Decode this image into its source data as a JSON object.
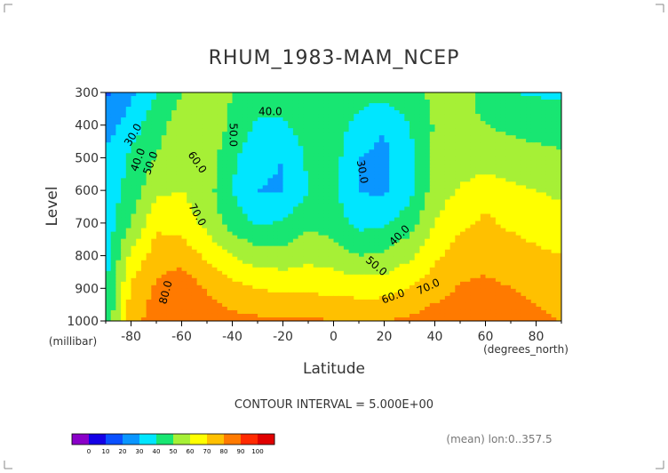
{
  "chart_data": {
    "type": "heatmap",
    "title": "RHUM_1983-MAM_NCEP",
    "xlabel": "Latitude",
    "ylabel": "Level",
    "x_unit": "(degrees_north)",
    "y_unit": "(millibar)",
    "xlim": [
      -90,
      90
    ],
    "ylim": [
      1000,
      300
    ],
    "x_ticks": [
      -80,
      -60,
      -40,
      -20,
      0,
      20,
      40,
      60,
      80
    ],
    "x_tick_labels": [
      "-80",
      "-60",
      "-40",
      "-20",
      "0",
      "20",
      "40",
      "60",
      "80"
    ],
    "y_ticks": [
      300,
      400,
      500,
      600,
      700,
      800,
      900,
      1000
    ],
    "y_tick_labels": [
      "300",
      "400",
      "500",
      "600",
      "700",
      "800",
      "900",
      "1000"
    ],
    "contour_interval_text": "CONTOUR INTERVAL = 5.000E+00",
    "footnote": "(mean) lon:0..357.5",
    "colorbar": {
      "ticks": [
        "0",
        "10",
        "20",
        "30",
        "40",
        "50",
        "60",
        "70",
        "80",
        "90",
        "100"
      ],
      "colors": [
        "#8a00c8",
        "#1400e6",
        "#0a50ff",
        "#0a96ff",
        "#00e6ff",
        "#18e672",
        "#a6f036",
        "#ffff00",
        "#ffc000",
        "#ff7a00",
        "#ff2a00",
        "#e00000"
      ]
    },
    "contour_labels": [
      {
        "text": "30.0",
        "lat": -78,
        "lev": 435,
        "rot": -60
      },
      {
        "text": "40.0",
        "lat": -76,
        "lev": 510,
        "rot": -70
      },
      {
        "text": "50.0",
        "lat": -71,
        "lev": 520,
        "rot": -70
      },
      {
        "text": "60.0",
        "lat": -55,
        "lev": 520,
        "rot": 55
      },
      {
        "text": "70.0",
        "lat": -55,
        "lev": 680,
        "rot": 60
      },
      {
        "text": "80.0",
        "lat": -65,
        "lev": 915,
        "rot": -75
      },
      {
        "text": "40.0",
        "lat": -25,
        "lev": 370,
        "rot": 0
      },
      {
        "text": "50.0",
        "lat": -41,
        "lev": 430,
        "rot": 90
      },
      {
        "text": "30.0",
        "lat": 10,
        "lev": 545,
        "rot": 80
      },
      {
        "text": "40.0",
        "lat": 27,
        "lev": 745,
        "rot": -45
      },
      {
        "text": "50.0",
        "lat": 16,
        "lev": 840,
        "rot": 40
      },
      {
        "text": "60.0",
        "lat": 24,
        "lev": 935,
        "rot": -20
      },
      {
        "text": "70.0",
        "lat": 38,
        "lev": 905,
        "rot": -25
      }
    ],
    "field": {
      "latitudes": [
        -90,
        -80,
        -70,
        -60,
        -50,
        -40,
        -30,
        -20,
        -10,
        0,
        10,
        20,
        30,
        40,
        50,
        60,
        70,
        80,
        90
      ],
      "levels": [
        300,
        400,
        500,
        600,
        700,
        800,
        900,
        1000
      ],
      "values": [
        [
          18,
          28,
          40,
          50,
          55,
          50,
          45,
          47,
          49,
          47,
          45,
          43,
          47,
          52,
          54,
          46,
          40,
          39,
          38
        ],
        [
          25,
          35,
          46,
          56,
          58,
          48,
          38,
          38,
          46,
          46,
          36,
          31,
          40,
          51,
          53,
          50,
          48,
          46,
          45
        ],
        [
          32,
          42,
          50,
          58,
          56,
          42,
          32,
          30,
          42,
          44,
          30,
          27,
          37,
          52,
          55,
          56,
          54,
          53,
          52
        ],
        [
          33,
          44,
          58,
          60,
          54,
          40,
          30,
          29,
          40,
          42,
          30,
          28,
          37,
          55,
          61,
          65,
          62,
          60,
          58
        ],
        [
          34,
          50,
          68,
          66,
          57,
          45,
          39,
          41,
          48,
          45,
          37,
          38,
          45,
          60,
          68,
          72,
          68,
          66,
          64
        ],
        [
          36,
          62,
          75,
          76,
          68,
          60,
          54,
          54,
          57,
          55,
          50,
          52,
          58,
          68,
          75,
          77,
          75,
          72,
          70
        ],
        [
          38,
          72,
          82,
          87,
          79,
          74,
          70,
          68,
          68,
          67,
          66,
          66,
          70,
          76,
          81,
          82,
          80,
          78,
          76
        ],
        [
          40,
          76,
          85,
          88,
          86,
          83,
          82,
          82,
          82,
          80,
          79,
          80,
          82,
          85,
          87,
          86,
          84,
          82,
          80
        ]
      ]
    }
  }
}
